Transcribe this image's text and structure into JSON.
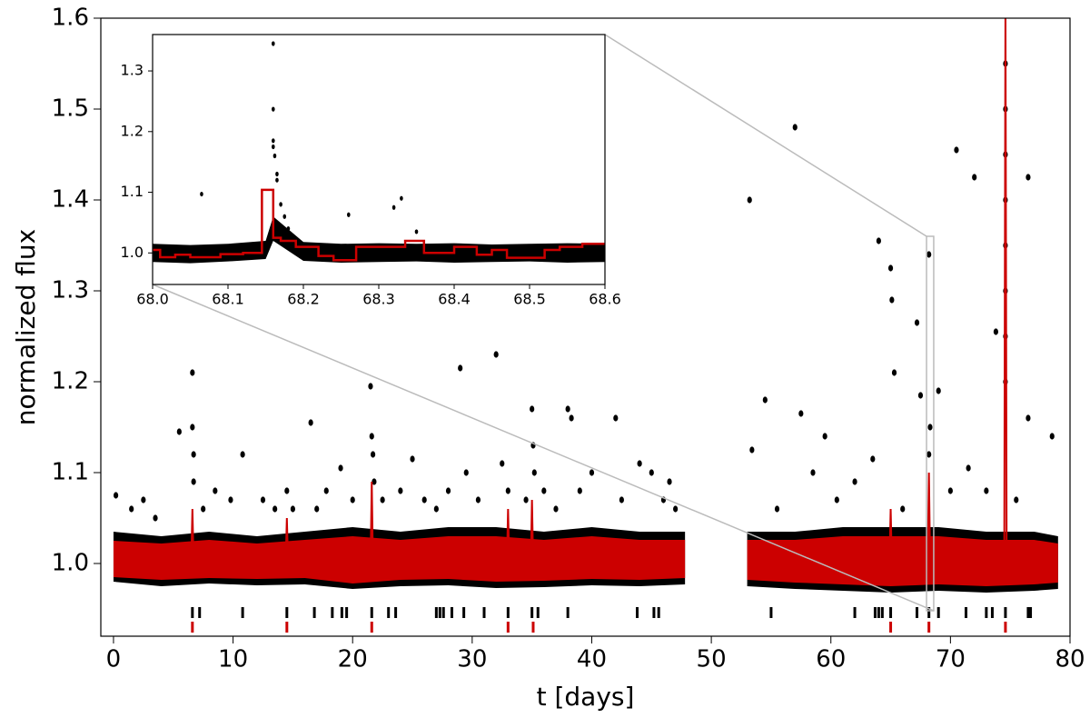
{
  "chart_data": [
    {
      "type": "scatter",
      "xlabel": "t [days]",
      "ylabel": "normalized flux",
      "xlim": [
        -1.06,
        80
      ],
      "ylim": [
        0.92,
        1.6
      ],
      "xticks": [
        0,
        10,
        20,
        30,
        40,
        50,
        60,
        70,
        80
      ],
      "yticks": [
        {
          "value": 1,
          "label": "1.0"
        },
        1.1,
        1.2,
        1.3,
        1.4,
        1.5,
        1.6
      ],
      "bands": [
        {
          "color": "#000000",
          "x": [
            0,
            4,
            8,
            12,
            16,
            20,
            24,
            28,
            32,
            36,
            40,
            44,
            47.8,
            50,
            53,
            57,
            61,
            65,
            69,
            73,
            77,
            79
          ],
          "lower": [
            0.98,
            0.975,
            0.978,
            0.976,
            0.977,
            0.972,
            0.975,
            0.976,
            0.973,
            0.974,
            0.976,
            0.975,
            0.977,
            null,
            0.975,
            0.972,
            0.97,
            0.968,
            0.97,
            0.968,
            0.97,
            0.972
          ],
          "upper": [
            1.035,
            1.03,
            1.035,
            1.03,
            1.035,
            1.04,
            1.035,
            1.04,
            1.04,
            1.035,
            1.04,
            1.035,
            1.035,
            null,
            1.035,
            1.035,
            1.04,
            1.04,
            1.04,
            1.035,
            1.035,
            1.03
          ]
        },
        {
          "color": "#cc0000",
          "x": [
            0,
            4,
            8,
            12,
            16,
            20,
            24,
            28,
            32,
            36,
            40,
            44,
            47.8,
            50,
            53,
            57,
            61,
            65,
            69,
            73,
            77,
            79
          ],
          "lower": [
            0.985,
            0.982,
            0.984,
            0.983,
            0.984,
            0.978,
            0.982,
            0.983,
            0.98,
            0.981,
            0.983,
            0.982,
            0.984,
            null,
            0.982,
            0.979,
            0.977,
            0.975,
            0.977,
            0.975,
            0.977,
            0.979
          ],
          "upper": [
            1.025,
            1.022,
            1.026,
            1.022,
            1.026,
            1.03,
            1.026,
            1.03,
            1.03,
            1.026,
            1.03,
            1.026,
            1.026,
            null,
            1.026,
            1.026,
            1.03,
            1.03,
            1.03,
            1.026,
            1.026,
            1.022
          ]
        }
      ],
      "lines": [
        {
          "color": "#cc0000",
          "x": [
            6.5,
            6.6,
            6.7,
            6.7,
            14.4,
            14.5,
            14.6,
            14.6,
            21.5,
            21.6,
            21.7,
            21.7,
            32.9,
            33,
            33.1,
            33.1,
            34.9,
            35,
            35.1,
            35.1,
            64.9,
            65,
            65.1,
            65.1,
            68.1,
            68.2,
            68.3,
            68.3,
            74.5,
            74.6,
            74.7
          ],
          "values": [
            1.0,
            1.06,
            1.0,
            null,
            1.0,
            1.05,
            1.0,
            null,
            1.0,
            1.09,
            1.0,
            null,
            1.0,
            1.06,
            1.0,
            null,
            1.0,
            1.07,
            1.0,
            null,
            1.0,
            1.06,
            1.0,
            null,
            1.0,
            1.1,
            1.0,
            null,
            1.0,
            1.62,
            1.0
          ]
        }
      ],
      "series": [
        {
          "color": "#000000",
          "x": [
            0.2,
            1.5,
            2.5,
            3.5,
            5.5,
            6.6,
            6.6,
            6.7,
            6.7,
            7.5,
            8.5,
            9.8,
            10.8,
            12.5,
            13.5,
            14.5,
            15,
            16.5,
            17,
            17.8,
            19,
            20,
            21.5,
            21.6,
            21.7,
            21.8,
            22.5,
            24,
            25,
            26,
            27,
            28,
            29,
            29.5,
            30.5,
            32,
            32.5,
            33,
            34.5,
            35,
            35.1,
            35.2,
            36,
            37,
            38,
            38.3,
            39,
            40,
            42,
            42.5,
            44,
            45,
            46,
            46.5,
            47,
            53.2,
            53.4,
            54.5,
            55.5,
            57,
            57.5,
            58.5,
            59.5,
            60.5,
            62,
            63.5,
            64,
            65,
            65.1,
            65.3,
            66,
            67.2,
            67.5,
            68.2,
            68.3,
            68.2,
            69,
            70,
            70.5,
            71.5,
            72,
            73,
            73.8,
            74.6,
            74.6,
            74.6,
            74.6,
            74.6,
            74.6,
            74.6,
            74.6,
            75.5,
            76.5,
            76.5,
            78.5
          ],
          "values": [
            1.075,
            1.06,
            1.07,
            1.05,
            1.145,
            1.21,
            1.15,
            1.12,
            1.09,
            1.06,
            1.08,
            1.07,
            1.12,
            1.07,
            1.06,
            1.08,
            1.06,
            1.155,
            1.06,
            1.08,
            1.105,
            1.07,
            1.195,
            1.14,
            1.12,
            1.09,
            1.07,
            1.08,
            1.115,
            1.07,
            1.06,
            1.08,
            1.215,
            1.1,
            1.07,
            1.23,
            1.11,
            1.08,
            1.07,
            1.17,
            1.13,
            1.1,
            1.08,
            1.06,
            1.17,
            1.16,
            1.08,
            1.1,
            1.16,
            1.07,
            1.11,
            1.1,
            1.07,
            1.09,
            1.06,
            1.4,
            1.125,
            1.18,
            1.06,
            1.48,
            1.165,
            1.1,
            1.14,
            1.07,
            1.09,
            1.115,
            1.355,
            1.325,
            1.29,
            1.21,
            1.06,
            1.265,
            1.185,
            1.34,
            1.15,
            1.12,
            1.19,
            1.08,
            1.455,
            1.105,
            1.425,
            1.08,
            1.255,
            1.55,
            1.5,
            1.45,
            1.4,
            1.35,
            1.3,
            1.25,
            1.2,
            1.07,
            1.425,
            1.16,
            1.14
          ]
        }
      ],
      "events": [
        {
          "color": "#000000",
          "x": [
            6.6,
            7.2,
            10.8,
            14.5,
            16.8,
            18.3,
            19.1,
            19.5,
            21.6,
            23,
            23.6,
            27,
            27.3,
            27.6,
            28.3,
            29.3,
            31,
            33,
            35,
            35.5,
            38,
            43.8,
            45.2,
            45.6,
            55,
            62,
            63.7,
            64,
            64.3,
            65,
            67.2,
            68.2,
            69,
            71.3,
            73,
            73.5,
            74.6,
            76.5,
            76.7
          ]
        },
        {
          "color": "#cc0000",
          "x": [
            6.6,
            14.5,
            21.6,
            33,
            35.1,
            65,
            68.2,
            74.6
          ]
        }
      ]
    },
    {
      "type": "scatter",
      "xlim": [
        68.0,
        68.6
      ],
      "ylim": [
        0.948,
        1.36
      ],
      "xticks": [
        {
          "value": 68,
          "label": "68.0"
        },
        68.1,
        68.2,
        68.3,
        68.4,
        68.5,
        68.6
      ],
      "yticks": [
        {
          "value": 1,
          "label": "1.0"
        },
        1.1,
        1.2,
        1.3
      ],
      "bands": [
        {
          "color": "#000000",
          "x": [
            68.0,
            68.05,
            68.1,
            68.15,
            68.16,
            68.2,
            68.25,
            68.3,
            68.35,
            68.4,
            68.45,
            68.5,
            68.55,
            68.6
          ],
          "lower": [
            0.985,
            0.983,
            0.986,
            0.99,
            1.02,
            0.987,
            0.984,
            0.985,
            0.986,
            0.984,
            0.985,
            0.986,
            0.984,
            0.985
          ],
          "upper": [
            1.015,
            1.013,
            1.015,
            1.02,
            1.06,
            1.018,
            1.015,
            1.016,
            1.015,
            1.016,
            1.014,
            1.015,
            1.016,
            1.015
          ]
        }
      ],
      "series": [
        {
          "color": "#000000",
          "x": [
            68.065,
            68.16,
            68.16,
            68.16,
            68.16,
            68.162,
            68.165,
            68.165,
            68.17,
            68.175,
            68.18,
            68.26,
            68.33,
            68.32,
            68.35
          ],
          "values": [
            1.097,
            1.345,
            1.237,
            1.185,
            1.175,
            1.16,
            1.13,
            1.12,
            1.08,
            1.06,
            1.04,
            1.063,
            1.09,
            1.075,
            1.035
          ]
        }
      ],
      "steps": [
        {
          "color": "#cc0000",
          "edges": [
            68.0,
            68.01,
            68.03,
            68.05,
            68.09,
            68.12,
            68.145,
            68.16,
            68.17,
            68.19,
            68.22,
            68.24,
            68.27,
            68.31,
            68.335,
            68.36,
            68.4,
            68.43,
            68.45,
            68.47,
            68.52,
            68.54,
            68.57,
            68.6
          ],
          "values": [
            1.005,
            0.993,
            0.997,
            0.993,
            0.998,
            1.0,
            1.104,
            1.025,
            1.02,
            1.01,
            0.995,
            0.988,
            1.01,
            1.01,
            1.02,
            1.0,
            1.01,
            0.997,
            1.005,
            0.992,
            1.005,
            1.01,
            1.015
          ]
        }
      ]
    }
  ]
}
